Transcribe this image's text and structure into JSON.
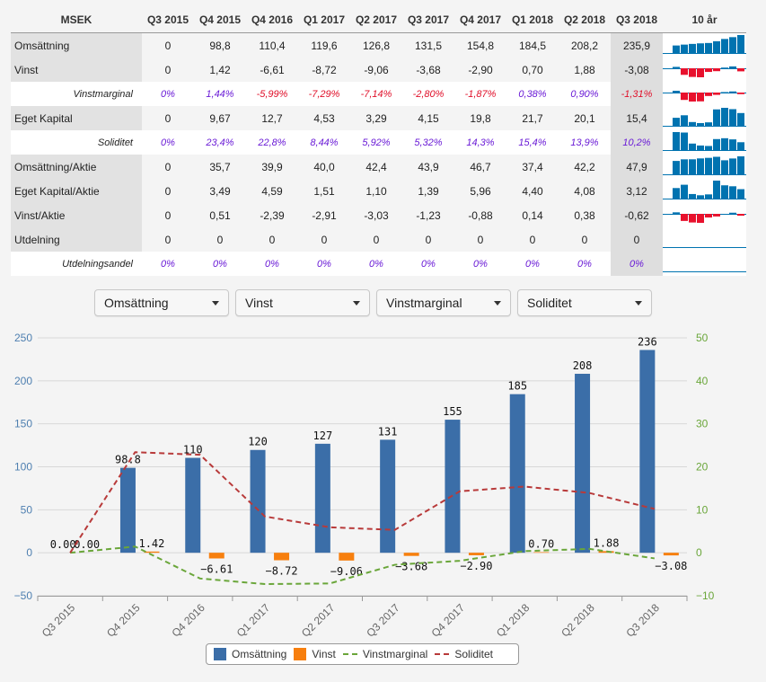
{
  "table": {
    "header_label": "MSEK",
    "quarters": [
      "Q3 2015",
      "Q4 2015",
      "Q4 2016",
      "Q1 2017",
      "Q2 2017",
      "Q3 2017",
      "Q4 2017",
      "Q1 2018",
      "Q2 2018",
      "Q3 2018"
    ],
    "spark_header": "10 år",
    "rows": [
      {
        "label": "Omsättning",
        "pct": false,
        "values": [
          "0",
          "98,8",
          "110,4",
          "119,6",
          "126,8",
          "131,5",
          "154,8",
          "184,5",
          "208,2",
          "235,9"
        ],
        "num": [
          0,
          98.8,
          110.4,
          119.6,
          126.8,
          131.5,
          154.8,
          184.5,
          208.2,
          235.9
        ]
      },
      {
        "label": "Vinst",
        "pct": false,
        "values": [
          "0",
          "1,42",
          "-6,61",
          "-8,72",
          "-9,06",
          "-3,68",
          "-2,90",
          "0,70",
          "1,88",
          "-3,08"
        ],
        "num": [
          0,
          1.42,
          -6.61,
          -8.72,
          -9.06,
          -3.68,
          -2.9,
          0.7,
          1.88,
          -3.08
        ]
      },
      {
        "label": "Vinstmarginal",
        "pct": true,
        "values": [
          "0%",
          "1,44%",
          "-5,99%",
          "-7,29%",
          "-7,14%",
          "-2,80%",
          "-1,87%",
          "0,38%",
          "0,90%",
          "-1,31%"
        ],
        "num": [
          0,
          1.44,
          -5.99,
          -7.29,
          -7.14,
          -2.8,
          -1.87,
          0.38,
          0.9,
          -1.31
        ]
      },
      {
        "label": "Eget Kapital",
        "pct": false,
        "values": [
          "0",
          "9,67",
          "12,7",
          "4,53",
          "3,29",
          "4,15",
          "19,8",
          "21,7",
          "20,1",
          "15,4"
        ],
        "num": [
          0,
          9.67,
          12.7,
          4.53,
          3.29,
          4.15,
          19.8,
          21.7,
          20.1,
          15.4
        ]
      },
      {
        "label": "Soliditet",
        "pct": true,
        "values": [
          "0%",
          "23,4%",
          "22,8%",
          "8,44%",
          "5,92%",
          "5,32%",
          "14,3%",
          "15,4%",
          "13,9%",
          "10,2%"
        ],
        "num": [
          0,
          23.4,
          22.8,
          8.44,
          5.92,
          5.32,
          14.3,
          15.4,
          13.9,
          10.2
        ]
      },
      {
        "label": "Omsättning/Aktie",
        "pct": false,
        "values": [
          "0",
          "35,7",
          "39,9",
          "40,0",
          "42,4",
          "43,9",
          "46,7",
          "37,4",
          "42,2",
          "47,9"
        ],
        "num": [
          0,
          35.7,
          39.9,
          40.0,
          42.4,
          43.9,
          46.7,
          37.4,
          42.2,
          47.9
        ]
      },
      {
        "label": "Eget Kapital/Aktie",
        "pct": false,
        "values": [
          "0",
          "3,49",
          "4,59",
          "1,51",
          "1,10",
          "1,39",
          "5,96",
          "4,40",
          "4,08",
          "3,12"
        ],
        "num": [
          0,
          3.49,
          4.59,
          1.51,
          1.1,
          1.39,
          5.96,
          4.4,
          4.08,
          3.12
        ]
      },
      {
        "label": "Vinst/Aktie",
        "pct": false,
        "values": [
          "0",
          "0,51",
          "-2,39",
          "-2,91",
          "-3,03",
          "-1,23",
          "-0,88",
          "0,14",
          "0,38",
          "-0,62"
        ],
        "num": [
          0,
          0.51,
          -2.39,
          -2.91,
          -3.03,
          -1.23,
          -0.88,
          0.14,
          0.38,
          -0.62
        ]
      },
      {
        "label": "Utdelning",
        "pct": false,
        "values": [
          "0",
          "0",
          "0",
          "0",
          "0",
          "0",
          "0",
          "0",
          "0",
          "0"
        ],
        "num": [
          0,
          0,
          0,
          0,
          0,
          0,
          0,
          0,
          0,
          0
        ]
      },
      {
        "label": "Utdelningsandel",
        "pct": true,
        "values": [
          "0%",
          "0%",
          "0%",
          "0%",
          "0%",
          "0%",
          "0%",
          "0%",
          "0%",
          "0%"
        ],
        "num": [
          0,
          0,
          0,
          0,
          0,
          0,
          0,
          0,
          0,
          0
        ]
      }
    ]
  },
  "dropdowns": [
    {
      "label": "Omsättning"
    },
    {
      "label": "Vinst"
    },
    {
      "label": "Vinstmarginal"
    },
    {
      "label": "Soliditet"
    }
  ],
  "colors": {
    "bar1": "#3b6ea8",
    "bar2": "#f77f0e",
    "line1": "#6aa63a",
    "line2": "#b83a3a",
    "spark_pos": "#0073b0",
    "spark_neg": "#e8112d",
    "left_axis": "#4e7fb0",
    "right_axis": "#6aa63a"
  },
  "chart_data": {
    "type": "bar",
    "categories": [
      "Q3 2015",
      "Q4 2015",
      "Q4 2016",
      "Q1 2017",
      "Q2 2017",
      "Q3 2017",
      "Q4 2017",
      "Q1 2018",
      "Q2 2018",
      "Q3 2018"
    ],
    "series": [
      {
        "name": "Omsättning",
        "type": "bar",
        "axis": "left",
        "values": [
          0,
          98.8,
          110.4,
          119.6,
          126.8,
          131.5,
          154.8,
          184.5,
          208.2,
          235.9
        ],
        "labels": [
          "0.00",
          "98.8",
          "110",
          "120",
          "127",
          "131",
          "155",
          "185",
          "208",
          "236"
        ]
      },
      {
        "name": "Vinst",
        "type": "bar",
        "axis": "left",
        "values": [
          0,
          1.42,
          -6.61,
          -8.72,
          -9.06,
          -3.68,
          -2.9,
          0.7,
          1.88,
          -3.08
        ],
        "labels": [
          "0.00",
          "1.42",
          "−6.61",
          "−8.72",
          "−9.06",
          "−3.68",
          "−2.90",
          "0.70",
          "1.88",
          "−3.08"
        ]
      },
      {
        "name": "Vinstmarginal",
        "type": "line",
        "axis": "right",
        "values": [
          0,
          1.44,
          -5.99,
          -7.29,
          -7.14,
          -2.8,
          -1.87,
          0.38,
          0.9,
          -1.31
        ]
      },
      {
        "name": "Soliditet",
        "type": "line",
        "axis": "right",
        "values": [
          0,
          23.4,
          22.8,
          8.44,
          5.92,
          5.32,
          14.3,
          15.4,
          13.9,
          10.2
        ]
      }
    ],
    "y_left": {
      "min": -50,
      "max": 250,
      "ticks": [
        "250",
        "200",
        "150",
        "100",
        "50",
        "0",
        "−50"
      ]
    },
    "y_right": {
      "min": -10,
      "max": 50,
      "ticks": [
        "50",
        "40",
        "30",
        "20",
        "10",
        "0",
        "−10"
      ]
    },
    "legend_position": "bottom-center"
  }
}
